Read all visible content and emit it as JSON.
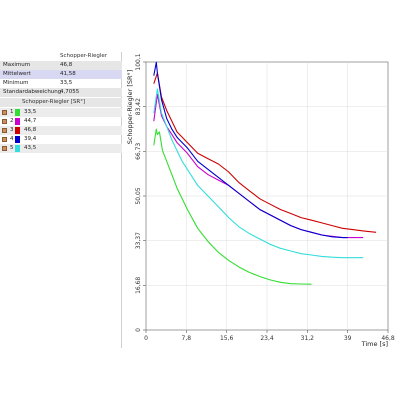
{
  "stats": {
    "header": "Schopper-Riegler [SR°]",
    "rows": [
      {
        "label": "Maximum",
        "value": "46,8"
      },
      {
        "label": "Mittelwert",
        "value": "41,58"
      },
      {
        "label": "Minimum",
        "value": "33,5"
      },
      {
        "label": "Standardabweichung",
        "value": "4,7055"
      }
    ]
  },
  "legend": {
    "header": "Schopper-Riegler [SR°]",
    "items": [
      {
        "num": "1",
        "value": "33,5",
        "color": "#33dd33"
      },
      {
        "num": "2",
        "value": "44,7",
        "color": "#cc00cc"
      },
      {
        "num": "3",
        "value": "46,8",
        "color": "#cc0000"
      },
      {
        "num": "4",
        "value": "39,4",
        "color": "#0000cc"
      },
      {
        "num": "5",
        "value": "43,5",
        "color": "#33dddd"
      }
    ]
  },
  "chart_data": {
    "type": "line",
    "xlabel": "Time [s]",
    "ylabel": "Schopper-Riegler [SR°]",
    "xlim": [
      0,
      46.8
    ],
    "ylim": [
      0,
      100.1
    ],
    "xticks": [
      "0",
      "7,8",
      "15,6",
      "23,4",
      "31,2",
      "39",
      "46,8"
    ],
    "yticks": [
      "0",
      "16,68",
      "33,37",
      "50,05",
      "66,73",
      "83,42",
      "100,1"
    ],
    "series": [
      {
        "name": "1",
        "color": "#33dd33",
        "x": [
          1.5,
          2.0,
          2.2,
          2.6,
          3.2,
          4,
          5,
          6,
          7,
          8,
          10,
          12,
          14,
          16,
          18,
          20,
          22,
          24,
          26,
          28,
          30,
          32
        ],
        "y": [
          69,
          75,
          73,
          74,
          67,
          63,
          58,
          53,
          49,
          45,
          38,
          33,
          29,
          26,
          23.5,
          21.5,
          20,
          18.7,
          17.8,
          17.3,
          17.2,
          17.1
        ]
      },
      {
        "name": "2",
        "color": "#cc00cc",
        "x": [
          1.5,
          2.2,
          3,
          4,
          5,
          6,
          7,
          8,
          10,
          12,
          14,
          16,
          18,
          20,
          22,
          24,
          26,
          28,
          30,
          32,
          34,
          36,
          38,
          40,
          42
        ],
        "y": [
          78,
          88,
          80,
          76,
          73,
          70,
          68,
          66,
          61,
          58,
          56,
          54,
          51,
          48,
          45,
          43,
          41,
          39,
          37.5,
          36.5,
          35.5,
          35,
          34.5,
          34.5,
          34.5
        ]
      },
      {
        "name": "3",
        "color": "#cc0000",
        "x": [
          1.5,
          2.2,
          3,
          4,
          5,
          6,
          7,
          8,
          10,
          12,
          14,
          16,
          18,
          20,
          22,
          24,
          26,
          28,
          30,
          32,
          34,
          36,
          38,
          40,
          42,
          44.5
        ],
        "y": [
          92,
          96,
          87,
          82,
          78,
          74,
          72,
          70,
          66,
          64,
          62,
          59,
          55,
          52,
          49,
          47,
          45,
          43.5,
          42,
          41,
          40,
          39,
          38,
          37.5,
          37,
          36.5
        ]
      },
      {
        "name": "4",
        "color": "#0000cc",
        "x": [
          1.5,
          2.0,
          2.2,
          3,
          4,
          5,
          6,
          7,
          8,
          10,
          12,
          14,
          16,
          18,
          20,
          22,
          24,
          26,
          28,
          30,
          32,
          34,
          36,
          38,
          39
        ],
        "y": [
          95,
          100,
          96,
          86,
          79,
          75,
          72,
          70,
          68,
          63,
          60,
          57,
          54,
          51,
          48,
          45,
          43,
          41,
          39,
          37.5,
          36.5,
          35.5,
          34.8,
          34.5,
          34.5
        ]
      },
      {
        "name": "5",
        "color": "#33dddd",
        "x": [
          1.5,
          2.2,
          3,
          4,
          5,
          6,
          7,
          8,
          10,
          12,
          14,
          16,
          18,
          20,
          22,
          24,
          26,
          28,
          30,
          32,
          34,
          36,
          38,
          40,
          42
        ],
        "y": [
          81,
          90,
          81,
          76,
          71,
          67,
          63,
          60,
          54,
          50,
          46,
          42,
          38.5,
          36,
          34,
          32,
          30.5,
          29.5,
          28.5,
          28,
          27.5,
          27.2,
          27,
          27,
          27
        ]
      }
    ]
  }
}
